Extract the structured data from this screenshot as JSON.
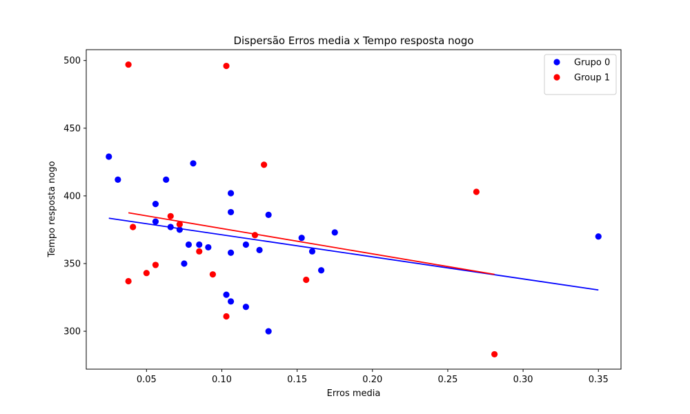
{
  "chart_data": {
    "type": "scatter",
    "title": "Dispersão Erros media x Tempo resposta nogo",
    "xlabel": "Erros media",
    "ylabel": "Tempo resposta nogo",
    "xlim": [
      0.01,
      0.365
    ],
    "ylim": [
      272,
      508
    ],
    "xticks": [
      0.05,
      0.1,
      0.15,
      0.2,
      0.25,
      0.3,
      0.35
    ],
    "xtick_labels": [
      "0.05",
      "0.10",
      "0.15",
      "0.20",
      "0.25",
      "0.30",
      "0.35"
    ],
    "yticks": [
      300,
      350,
      400,
      450,
      500
    ],
    "ytick_labels": [
      "300",
      "350",
      "400",
      "450",
      "500"
    ],
    "grid": false,
    "legend_position": "top-right",
    "series": [
      {
        "name": "Grupo 0",
        "color": "#0000ff",
        "points": [
          [
            0.025,
            429
          ],
          [
            0.031,
            412
          ],
          [
            0.056,
            394
          ],
          [
            0.056,
            381
          ],
          [
            0.063,
            412
          ],
          [
            0.066,
            377
          ],
          [
            0.072,
            375
          ],
          [
            0.075,
            350
          ],
          [
            0.078,
            364
          ],
          [
            0.081,
            424
          ],
          [
            0.085,
            364
          ],
          [
            0.091,
            362
          ],
          [
            0.103,
            327
          ],
          [
            0.106,
            402
          ],
          [
            0.106,
            388
          ],
          [
            0.106,
            358
          ],
          [
            0.106,
            322
          ],
          [
            0.116,
            364
          ],
          [
            0.116,
            318
          ],
          [
            0.125,
            360
          ],
          [
            0.131,
            386
          ],
          [
            0.131,
            300
          ],
          [
            0.153,
            369
          ],
          [
            0.16,
            359
          ],
          [
            0.166,
            345
          ],
          [
            0.175,
            373
          ],
          [
            0.35,
            370
          ]
        ],
        "trend": {
          "x": [
            0.025,
            0.35
          ],
          "y": [
            383.5,
            330.5
          ]
        }
      },
      {
        "name": "Group 1",
        "color": "#ff0000",
        "points": [
          [
            0.038,
            497
          ],
          [
            0.038,
            337
          ],
          [
            0.041,
            377
          ],
          [
            0.05,
            343
          ],
          [
            0.056,
            349
          ],
          [
            0.066,
            385
          ],
          [
            0.072,
            379
          ],
          [
            0.085,
            359
          ],
          [
            0.094,
            342
          ],
          [
            0.103,
            496
          ],
          [
            0.103,
            311
          ],
          [
            0.122,
            371
          ],
          [
            0.128,
            423
          ],
          [
            0.156,
            338
          ],
          [
            0.269,
            403
          ],
          [
            0.281,
            283
          ]
        ],
        "trend": {
          "x": [
            0.038,
            0.281
          ],
          "y": [
            387.5,
            342.0
          ]
        }
      }
    ]
  }
}
